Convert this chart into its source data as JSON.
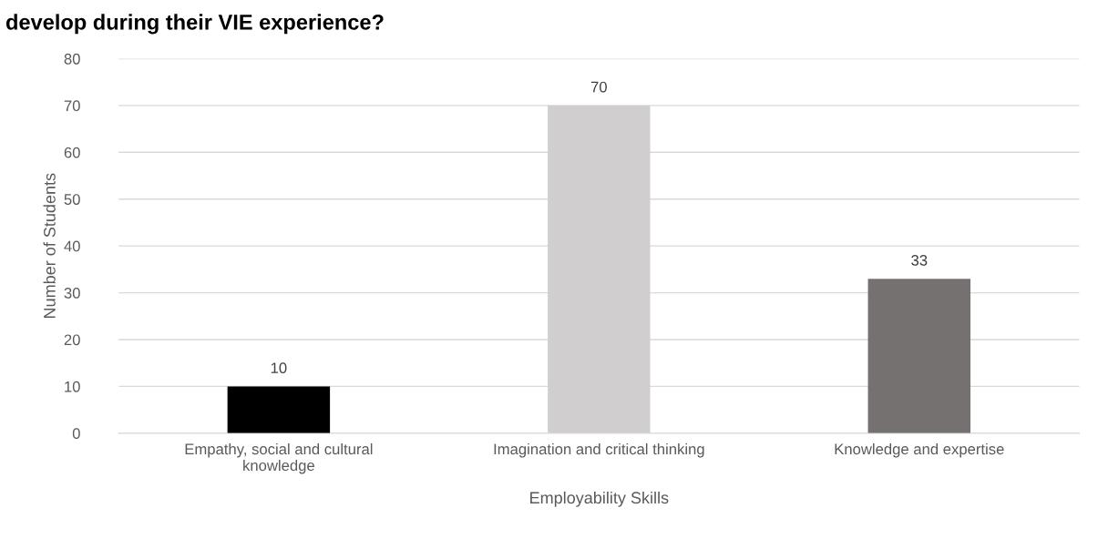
{
  "chart_data": {
    "type": "bar",
    "title": "develop during their VIE experience?",
    "xlabel": "Employability Skills",
    "ylabel": "Number of Students",
    "categories": [
      "Empathy, social and cultural\nknowledge",
      "Imagination and critical thinking",
      "Knowledge and expertise"
    ],
    "values": [
      10,
      70,
      33
    ],
    "colors": [
      "#000000",
      "#d0cece",
      "#767171"
    ],
    "ylim": [
      0,
      80
    ],
    "yticks": [
      0,
      10,
      20,
      30,
      40,
      50,
      60,
      70,
      80
    ],
    "grid": "y",
    "data_labels": true
  }
}
